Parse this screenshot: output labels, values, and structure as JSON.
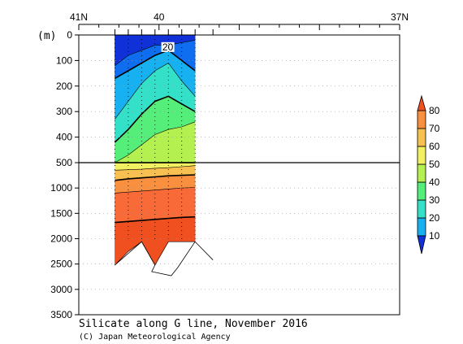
{
  "chart_data": {
    "type": "heatmap",
    "title": "Silicate along G line, November 2016",
    "credit": "(C) Japan Meteorological Agency",
    "ylabel": "(m)",
    "x_axis": {
      "label_ticks": [
        {
          "lat": 41,
          "label": "41N"
        },
        {
          "lat": 40,
          "label": "40"
        },
        {
          "lat": 37,
          "label": "37N"
        }
      ],
      "xlim": [
        41,
        37
      ]
    },
    "y_axis": {
      "upper_ticks": [
        0,
        100,
        200,
        300,
        400,
        500
      ],
      "lower_ticks": [
        500,
        1000,
        1500,
        2000,
        2500,
        3000,
        3500
      ],
      "break_depth": 500
    },
    "colorbar": {
      "levels": [
        10,
        20,
        30,
        40,
        50,
        60,
        70,
        80
      ],
      "colors": [
        "#1030d8",
        "#0f6ef0",
        "#17b0f0",
        "#35e0c8",
        "#55ee7a",
        "#b4f050",
        "#f0f060",
        "#f8c050",
        "#f89040",
        "#f86a38",
        "#f05020"
      ]
    },
    "section": {
      "lat_start": 40.55,
      "lat_end": 39.55,
      "contour_label": "20",
      "layers_upper": [
        {
          "top": [
            0,
            0,
            0,
            0,
            0,
            0,
            0
          ],
          "bottom": [
            120,
            80,
            60,
            40,
            40,
            30,
            20
          ],
          "color_index": 0
        },
        {
          "top": [
            120,
            80,
            60,
            40,
            40,
            30,
            20
          ],
          "bottom": [
            170,
            140,
            110,
            80,
            60,
            100,
            140
          ],
          "color_index": 1
        },
        {
          "top": [
            170,
            140,
            110,
            80,
            60,
            100,
            140
          ],
          "bottom": [
            330,
            260,
            190,
            140,
            110,
            180,
            240
          ],
          "color_index": 2
        },
        {
          "top": [
            330,
            260,
            190,
            140,
            110,
            180,
            240
          ],
          "bottom": [
            420,
            370,
            310,
            260,
            240,
            270,
            300
          ],
          "color_index": 3
        },
        {
          "top": [
            420,
            370,
            310,
            260,
            240,
            270,
            300
          ],
          "bottom": [
            500,
            470,
            430,
            390,
            370,
            360,
            340
          ],
          "color_index": 4
        },
        {
          "top": [
            500,
            470,
            430,
            390,
            370,
            360,
            340
          ],
          "bottom": [
            500,
            500,
            500,
            500,
            500,
            500,
            500
          ],
          "color_index": 5
        }
      ],
      "layers_lower": [
        {
          "top": [
            500,
            500,
            500,
            500,
            500,
            500,
            500
          ],
          "bottom": [
            650,
            640,
            630,
            610,
            600,
            580,
            560
          ],
          "color_index": 6
        },
        {
          "top": [
            650,
            640,
            630,
            610,
            600,
            580,
            560
          ],
          "bottom": [
            850,
            820,
            800,
            780,
            760,
            750,
            740
          ],
          "color_index": 7
        },
        {
          "top": [
            850,
            820,
            800,
            780,
            760,
            750,
            740
          ],
          "bottom": [
            1100,
            1080,
            1060,
            1040,
            1020,
            1000,
            990
          ],
          "color_index": 8
        },
        {
          "top": [
            1100,
            1080,
            1060,
            1040,
            1020,
            1000,
            990
          ],
          "bottom": [
            1680,
            1660,
            1640,
            1620,
            1600,
            1580,
            1570
          ],
          "color_index": 9
        },
        {
          "top": [
            1680,
            1660,
            1640,
            1620,
            1600,
            1580,
            1570
          ],
          "bottom": [
            2520,
            2250,
            2060,
            2520,
            2060,
            2060,
            2060
          ],
          "color_index": 10
        }
      ]
    }
  }
}
